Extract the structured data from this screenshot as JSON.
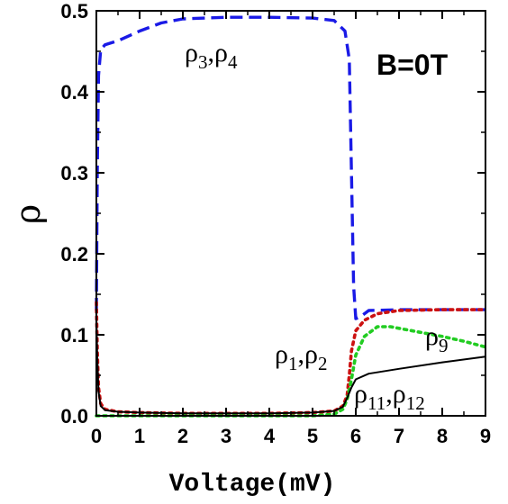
{
  "chart_data": {
    "type": "line",
    "xlabel": "Voltage(mV)",
    "ylabel": "ρ",
    "xlim": [
      0,
      9
    ],
    "ylim": [
      0,
      0.5
    ],
    "x_ticks": [
      "0",
      "1",
      "2",
      "3",
      "4",
      "5",
      "6",
      "7",
      "8",
      "9"
    ],
    "y_ticks": [
      "0.0",
      "0.1",
      "0.2",
      "0.3",
      "0.4",
      "0.5"
    ],
    "grid": false,
    "annotations": {
      "field": "B=0T",
      "rho34": {
        "base": "ρ",
        "sub1": "3",
        "sep": ",",
        "sub2": "4"
      },
      "rho12": {
        "base": "ρ",
        "sub1": "1",
        "sep": ",",
        "sub2": "2"
      },
      "rho9": {
        "base": "ρ",
        "sub": "9"
      },
      "rho1112": {
        "base": "ρ",
        "sub1": "11",
        "sep": ",",
        "sub2": "12"
      }
    },
    "series": [
      {
        "label_ref": "rho34",
        "color": "#1a1ae6",
        "style": "dashed",
        "points": [
          [
            0,
            0.13
          ],
          [
            0.02,
            0.3
          ],
          [
            0.05,
            0.42
          ],
          [
            0.1,
            0.452
          ],
          [
            0.2,
            0.458
          ],
          [
            0.5,
            0.463
          ],
          [
            1,
            0.475
          ],
          [
            1.5,
            0.485
          ],
          [
            2,
            0.49
          ],
          [
            3,
            0.492
          ],
          [
            4,
            0.492
          ],
          [
            5,
            0.491
          ],
          [
            5.5,
            0.488
          ],
          [
            5.75,
            0.475
          ],
          [
            5.85,
            0.44
          ],
          [
            5.9,
            0.3
          ],
          [
            5.95,
            0.16
          ],
          [
            6.0,
            0.12
          ],
          [
            6.1,
            0.122
          ],
          [
            6.3,
            0.13
          ],
          [
            7,
            0.131
          ],
          [
            8,
            0.131
          ],
          [
            9,
            0.131
          ]
        ]
      },
      {
        "label_ref": "rho12",
        "color": "#cc1111",
        "style": "dotted",
        "points": [
          [
            0,
            0.14
          ],
          [
            0.02,
            0.08
          ],
          [
            0.05,
            0.035
          ],
          [
            0.1,
            0.015
          ],
          [
            0.2,
            0.008
          ],
          [
            0.5,
            0.005
          ],
          [
            1,
            0.004
          ],
          [
            2,
            0.003
          ],
          [
            3,
            0.003
          ],
          [
            4,
            0.003
          ],
          [
            5,
            0.004
          ],
          [
            5.5,
            0.006
          ],
          [
            5.7,
            0.012
          ],
          [
            5.8,
            0.025
          ],
          [
            5.85,
            0.05
          ],
          [
            5.9,
            0.08
          ],
          [
            6.0,
            0.105
          ],
          [
            6.2,
            0.118
          ],
          [
            6.5,
            0.126
          ],
          [
            7,
            0.13
          ],
          [
            8,
            0.131
          ],
          [
            9,
            0.131
          ]
        ]
      },
      {
        "label_ref": "rho9",
        "color": "#22cc22",
        "style": "dotted",
        "points": [
          [
            0,
            0
          ],
          [
            1,
            0
          ],
          [
            2,
            0
          ],
          [
            3,
            0
          ],
          [
            4,
            0
          ],
          [
            5,
            0
          ],
          [
            5.5,
            0.002
          ],
          [
            5.7,
            0.008
          ],
          [
            5.8,
            0.02
          ],
          [
            5.9,
            0.045
          ],
          [
            6.0,
            0.075
          ],
          [
            6.2,
            0.098
          ],
          [
            6.5,
            0.11
          ],
          [
            6.8,
            0.11
          ],
          [
            7.2,
            0.106
          ],
          [
            8,
            0.098
          ],
          [
            8.5,
            0.092
          ],
          [
            9,
            0.085
          ]
        ]
      },
      {
        "label_ref": "rho1112",
        "color": "#000000",
        "style": "solid",
        "points": [
          [
            0,
            0.12
          ],
          [
            0.02,
            0.07
          ],
          [
            0.05,
            0.03
          ],
          [
            0.1,
            0.012
          ],
          [
            0.2,
            0.007
          ],
          [
            0.5,
            0.005
          ],
          [
            1,
            0.004
          ],
          [
            2,
            0.003
          ],
          [
            3,
            0.003
          ],
          [
            4,
            0.003
          ],
          [
            5,
            0.004
          ],
          [
            5.5,
            0.006
          ],
          [
            5.7,
            0.011
          ],
          [
            5.8,
            0.022
          ],
          [
            5.9,
            0.035
          ],
          [
            6.0,
            0.045
          ],
          [
            6.3,
            0.052
          ],
          [
            7,
            0.058
          ],
          [
            8,
            0.066
          ],
          [
            9,
            0.073
          ]
        ]
      }
    ]
  }
}
